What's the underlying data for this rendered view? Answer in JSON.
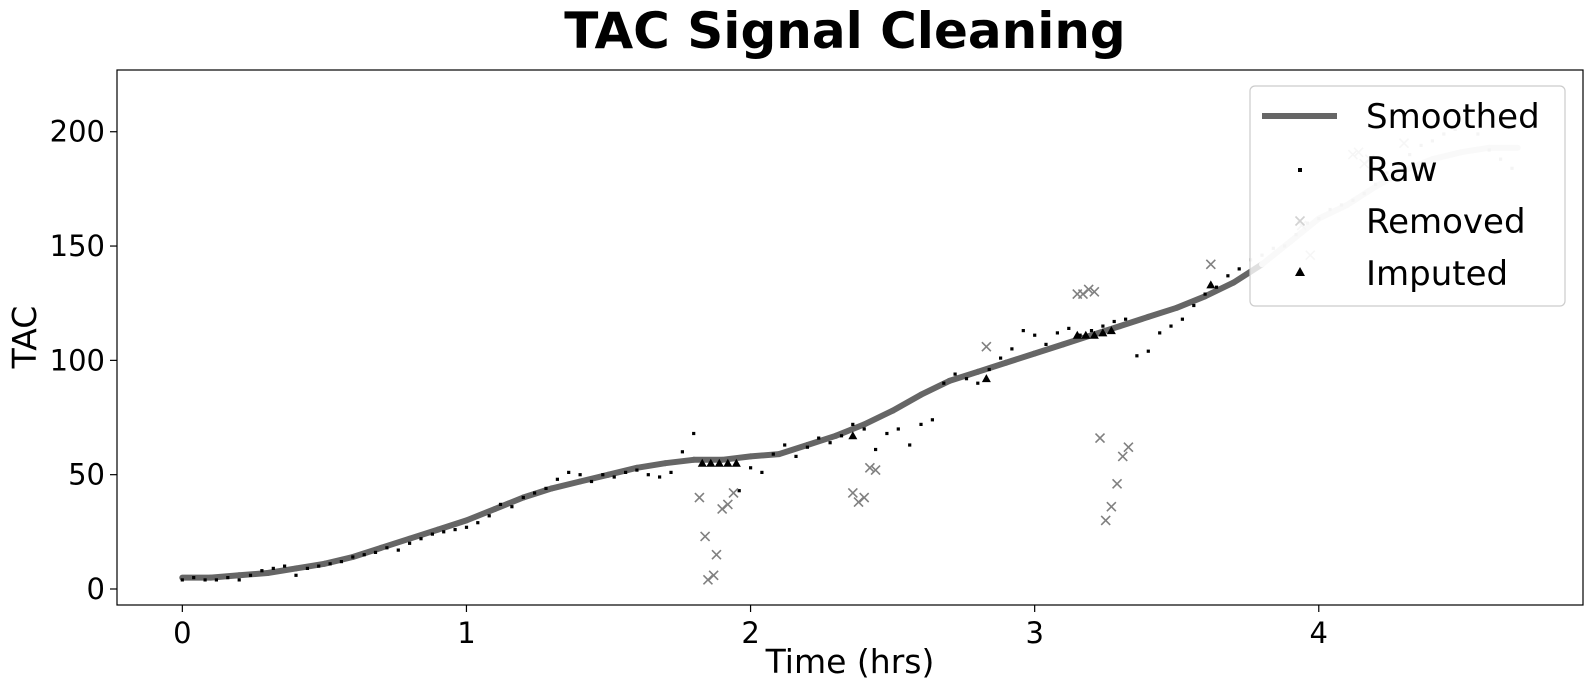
{
  "chart_data": {
    "type": "scatter",
    "title": "TAC Signal Cleaning",
    "xlabel": "Time (hrs)",
    "ylabel": "TAC",
    "xlim": [
      -0.23,
      4.93
    ],
    "ylim": [
      -7,
      227
    ],
    "xticks": [
      0,
      1,
      2,
      3,
      4
    ],
    "yticks": [
      0,
      50,
      100,
      150,
      200
    ],
    "grid": false,
    "legend_position": "top-right",
    "colors": {
      "smoothed": "#666666",
      "raw": "#000000",
      "removed": "#808080",
      "imputed": "#000000",
      "smoothed_light": "#e0e0e0",
      "raw_light": "#c8c8c8",
      "removed_light": "#d2d2d2"
    },
    "series": [
      {
        "name": "Smoothed",
        "kind": "line",
        "x": [
          0,
          0.1,
          0.2,
          0.3,
          0.4,
          0.5,
          0.6,
          0.7,
          0.8,
          0.9,
          1.0,
          1.1,
          1.2,
          1.3,
          1.4,
          1.5,
          1.6,
          1.7,
          1.8,
          1.9,
          2.0,
          2.1,
          2.2,
          2.3,
          2.4,
          2.5,
          2.6,
          2.7,
          2.8,
          2.9,
          3.0,
          3.1,
          3.2,
          3.3,
          3.4,
          3.5,
          3.6,
          3.7,
          3.8,
          3.9,
          4.0,
          4.1,
          4.2,
          4.3,
          4.4,
          4.5,
          4.6,
          4.7
        ],
        "y": [
          5,
          5,
          6,
          7,
          9,
          11,
          14,
          18,
          22,
          26,
          30,
          35,
          40,
          44,
          47,
          50,
          53,
          55,
          56.5,
          56.5,
          58,
          59,
          63,
          67,
          72,
          78,
          85,
          91,
          95,
          99,
          103,
          107,
          111,
          115,
          119,
          123,
          128,
          134,
          142,
          152,
          162,
          168,
          176,
          183,
          188,
          191,
          193,
          193
        ]
      },
      {
        "name": "Raw",
        "kind": "points",
        "x": [
          0.0,
          0.04,
          0.08,
          0.12,
          0.16,
          0.2,
          0.24,
          0.28,
          0.32,
          0.36,
          0.4,
          0.44,
          0.48,
          0.52,
          0.56,
          0.6,
          0.64,
          0.68,
          0.72,
          0.76,
          0.8,
          0.84,
          0.88,
          0.92,
          0.96,
          1.0,
          1.04,
          1.08,
          1.12,
          1.16,
          1.2,
          1.24,
          1.28,
          1.32,
          1.36,
          1.4,
          1.44,
          1.48,
          1.52,
          1.56,
          1.6,
          1.64,
          1.68,
          1.72,
          1.76,
          1.8,
          1.96,
          2.0,
          2.04,
          2.08,
          2.12,
          2.16,
          2.2,
          2.24,
          2.28,
          2.32,
          2.36,
          2.4,
          2.44,
          2.48,
          2.52,
          2.56,
          2.6,
          2.64,
          2.68,
          2.72,
          2.76,
          2.8,
          2.84,
          2.88,
          2.92,
          2.96,
          3.0,
          3.04,
          3.08,
          3.12,
          3.16,
          3.2,
          3.24,
          3.28,
          3.32,
          3.36,
          3.4,
          3.44,
          3.48,
          3.52,
          3.56,
          3.6,
          3.64,
          3.68,
          3.72,
          3.76,
          3.8,
          3.84,
          3.88,
          3.92,
          3.96,
          4.0,
          4.04,
          4.08,
          4.12,
          4.16,
          4.2,
          4.24,
          4.28,
          4.32,
          4.36,
          4.4,
          4.44,
          4.48,
          4.52,
          4.56,
          4.6,
          4.64,
          4.68
        ],
        "y": [
          4,
          5,
          4,
          4,
          5,
          4,
          6,
          8,
          9,
          10,
          6,
          9,
          10,
          11,
          12,
          14,
          15,
          16,
          18,
          17,
          20,
          22,
          24,
          25,
          26,
          27,
          29,
          32,
          37,
          36,
          40,
          42,
          44,
          48,
          51,
          50,
          47,
          50,
          49,
          51,
          52,
          50,
          49,
          51,
          60,
          68,
          43,
          53,
          51,
          59,
          63,
          58,
          62,
          66,
          64,
          67,
          72,
          70,
          61,
          68,
          70,
          63,
          72,
          74,
          90,
          94,
          92,
          90,
          96,
          101,
          105,
          113,
          111,
          107,
          112,
          114,
          111,
          113,
          115,
          117,
          118,
          102,
          104,
          112,
          115,
          118,
          124,
          129,
          132,
          137,
          140,
          144,
          146,
          149,
          150,
          155,
          160,
          162,
          166,
          168,
          170,
          173,
          177,
          182,
          186,
          190,
          194,
          196,
          199,
          201,
          206,
          199,
          192,
          188,
          184
        ]
      },
      {
        "name": "Removed",
        "kind": "x-markers",
        "x": [
          1.82,
          1.84,
          1.85,
          1.87,
          1.88,
          1.9,
          1.92,
          1.94,
          2.36,
          2.38,
          2.4,
          2.42,
          2.44,
          2.83,
          3.15,
          3.17,
          3.19,
          3.21,
          3.23,
          3.25,
          3.27,
          3.29,
          3.31,
          3.33,
          3.62,
          3.94,
          3.97,
          4.12,
          4.14,
          4.16,
          4.18,
          4.3
        ],
        "y": [
          40,
          23,
          4,
          6,
          15,
          35,
          37,
          42,
          42,
          38,
          40,
          53,
          52,
          106,
          129,
          129,
          131,
          130,
          66,
          30,
          36,
          46,
          58,
          62,
          142,
          159,
          146,
          190,
          191,
          186,
          188,
          195
        ]
      },
      {
        "name": "Imputed",
        "kind": "triangles",
        "x": [
          1.83,
          1.86,
          1.89,
          1.92,
          1.95,
          2.36,
          2.83,
          3.15,
          3.18,
          3.21,
          3.24,
          3.27,
          3.62
        ],
        "y": [
          55,
          55,
          55,
          55,
          55,
          67,
          92,
          111,
          111,
          111,
          112,
          113,
          133
        ]
      }
    ]
  }
}
